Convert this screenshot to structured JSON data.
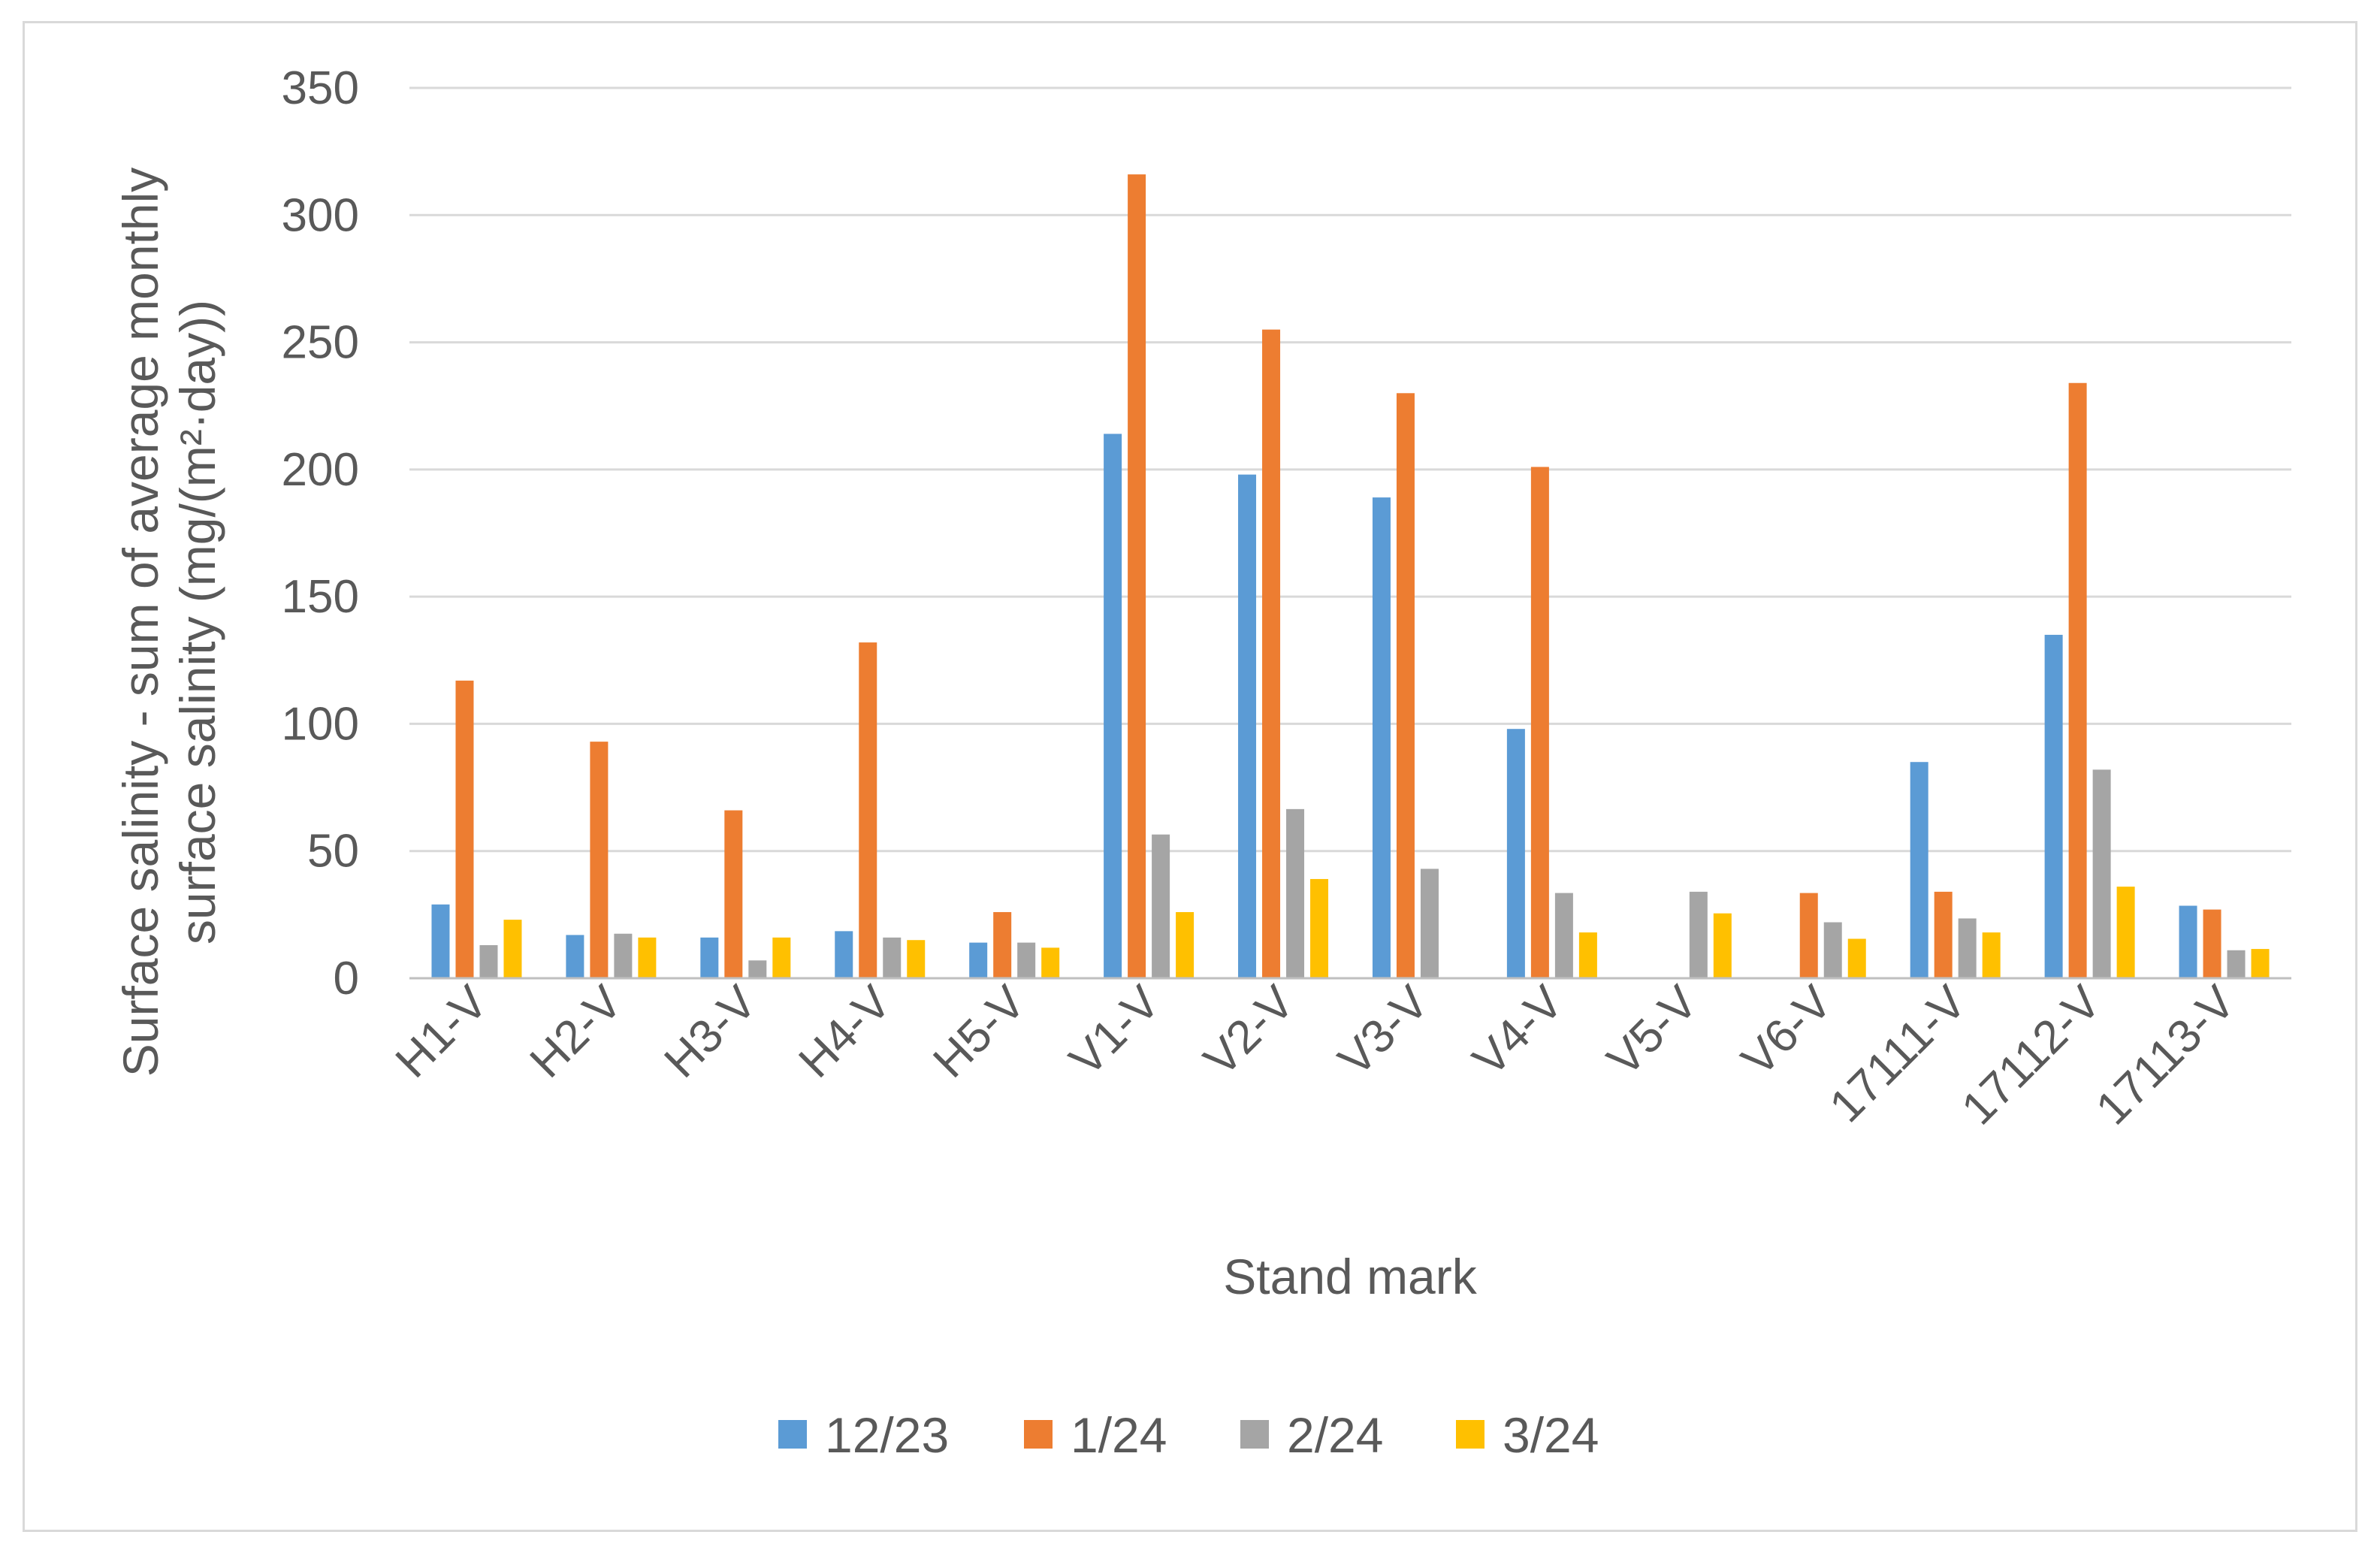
{
  "chart_data": {
    "type": "bar",
    "title": "",
    "xlabel": "Stand mark",
    "ylabel_lines": [
      "Surface salinity - sum of average monthly",
      "surface salinity (mg/(m²·day))"
    ],
    "ylim": [
      0,
      350
    ],
    "yticks": [
      0,
      50,
      100,
      150,
      200,
      250,
      300,
      350
    ],
    "grid": true,
    "legend_position": "bottom",
    "categories": [
      "H1-V",
      "H2-V",
      "H3-V",
      "H4-V",
      "H5-V",
      "V1-V",
      "V2-V",
      "V3-V",
      "V4-V",
      "V5-V",
      "V6-V",
      "17111-V",
      "17112-V",
      "17113-V"
    ],
    "series": [
      {
        "name": "12/23",
        "color": "#5b9bd5",
        "values": [
          29,
          17,
          16,
          18.5,
          14,
          214,
          198,
          189,
          98,
          0,
          0,
          85,
          135,
          28.5
        ]
      },
      {
        "name": "1/24",
        "color": "#ed7d31",
        "values": [
          117,
          93,
          66,
          132,
          26,
          316,
          255,
          230,
          201,
          0,
          33.5,
          34,
          234,
          27
        ]
      },
      {
        "name": "2/24",
        "color": "#a5a5a5",
        "values": [
          13,
          17.5,
          7,
          16,
          14,
          56.5,
          66.5,
          43,
          33.5,
          34,
          22,
          23.5,
          82,
          11
        ]
      },
      {
        "name": "3/24",
        "color": "#ffc000",
        "values": [
          23,
          16,
          16,
          15,
          12,
          26,
          39,
          0,
          18,
          25.5,
          15.5,
          18,
          36,
          11.5
        ]
      }
    ]
  }
}
